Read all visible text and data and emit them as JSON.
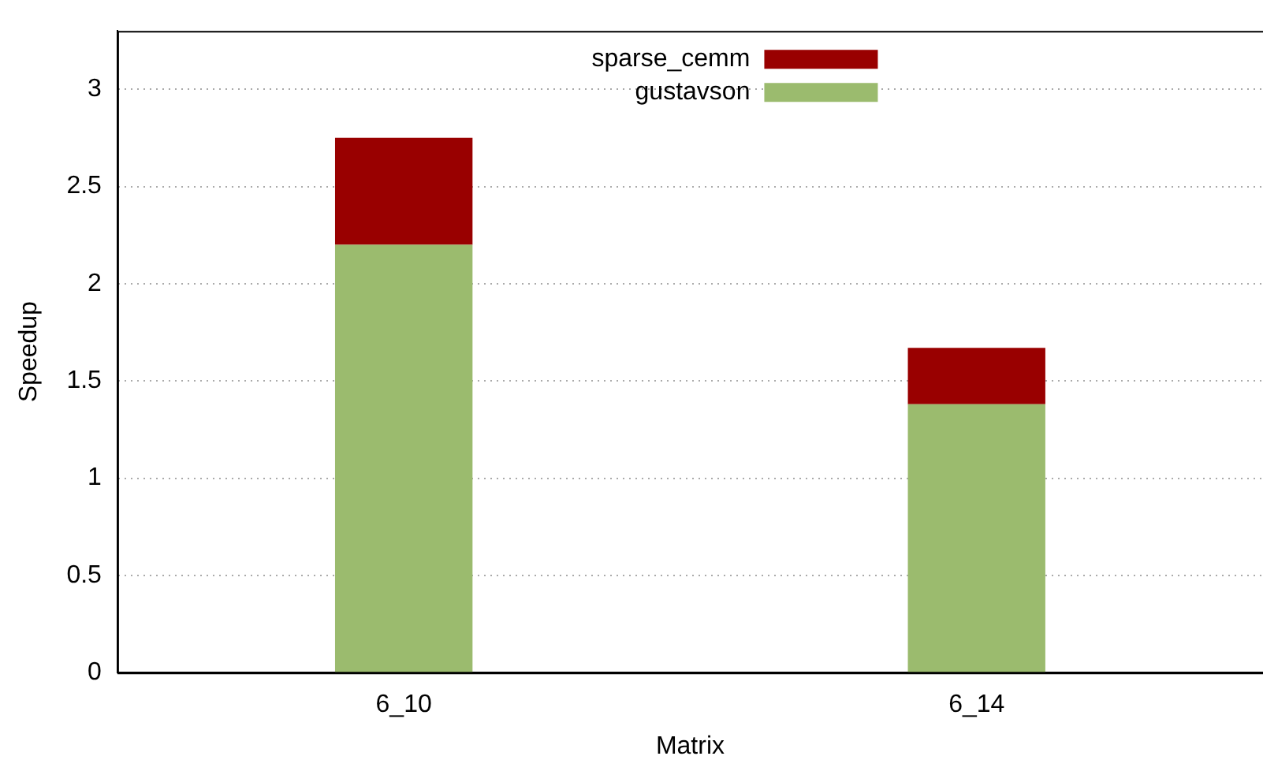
{
  "chart_data": {
    "type": "bar",
    "stacked": true,
    "xlabel": "Matrix",
    "ylabel": "Speedup",
    "categories": [
      "6_10",
      "6_14"
    ],
    "series": [
      {
        "name": "gustavson",
        "color": "#9bbb6e",
        "values": [
          2.2,
          1.38
        ]
      },
      {
        "name": "sparse_cemm",
        "color": "#990000",
        "values": [
          0.55,
          0.29
        ]
      }
    ],
    "ylim": [
      0,
      3.3
    ],
    "yticks": [
      0,
      0.5,
      1,
      1.5,
      2,
      2.5,
      3
    ],
    "grid": "y",
    "legend": "top"
  }
}
